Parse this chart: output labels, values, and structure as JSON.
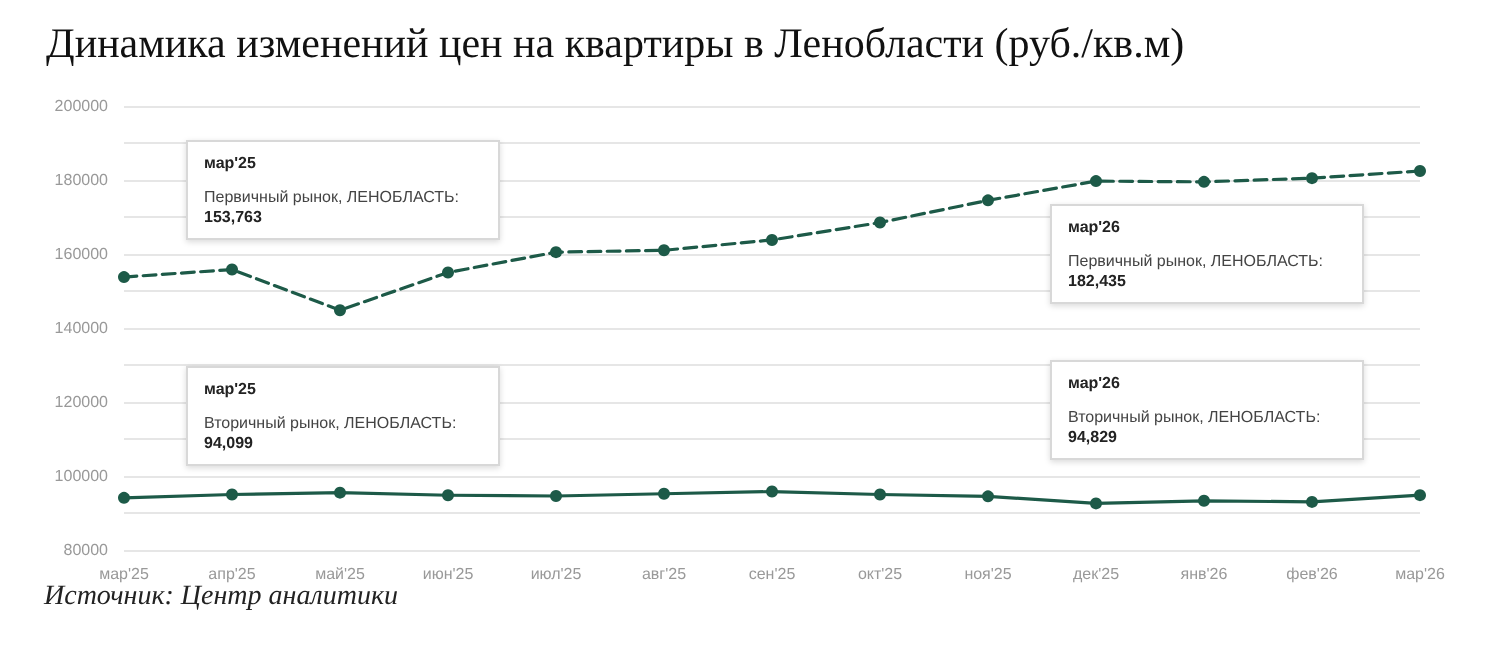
{
  "chart_data": {
    "type": "line",
    "title": "Динамика изменений цен на квартиры в Ленобласти (руб./кв.м)",
    "categories": [
      "мар'25",
      "апр'25",
      "май'25",
      "июн'25",
      "июл'25",
      "авг'25",
      "сен'25",
      "окт'25",
      "ноя'25",
      "дек'25",
      "янв'26",
      "фев'26",
      "мар'26"
    ],
    "series": [
      {
        "color": "#1d5a48",
        "line_style": "dashed",
        "values": [
          153763,
          155800,
          144800,
          155000,
          160500,
          161000,
          163800,
          168500,
          174500,
          179700,
          179500,
          180500,
          182435
        ]
      },
      {
        "color": "#1d5a48",
        "line_style": "solid",
        "values": [
          94099,
          95000,
          95500,
          94800,
          94600,
          95200,
          95800,
          95000,
          94500,
          92600,
          93300,
          93000,
          94829
        ]
      }
    ],
    "ylim": [
      80000,
      200000
    ],
    "yticks": [
      80000,
      {
        "value": 90000,
        "label": null
      },
      100000,
      {
        "value": 110000,
        "label": null
      },
      120000,
      {
        "value": 130000,
        "label": null
      },
      140000,
      {
        "value": 150000,
        "label": null
      },
      160000,
      {
        "value": 170000,
        "label": null
      },
      180000,
      {
        "value": 190000,
        "label": null
      },
      200000
    ],
    "grid": "y",
    "marker": "circle",
    "annotations": [
      "мар'25\nПервичный рынок, ЛЕНОБЛАСТЬ:\n153,763",
      "мар'25\nВторичный рынок, ЛЕНОБЛАСТЬ:\n94,099",
      "мар'26\nПервичный рынок, ЛЕНОБЛАСТЬ:\n182,435",
      "мар'26\nВторичный рынок, ЛЕНОБЛАСТЬ:\n94,829",
      "Источник: Центр аналитики"
    ]
  }
}
